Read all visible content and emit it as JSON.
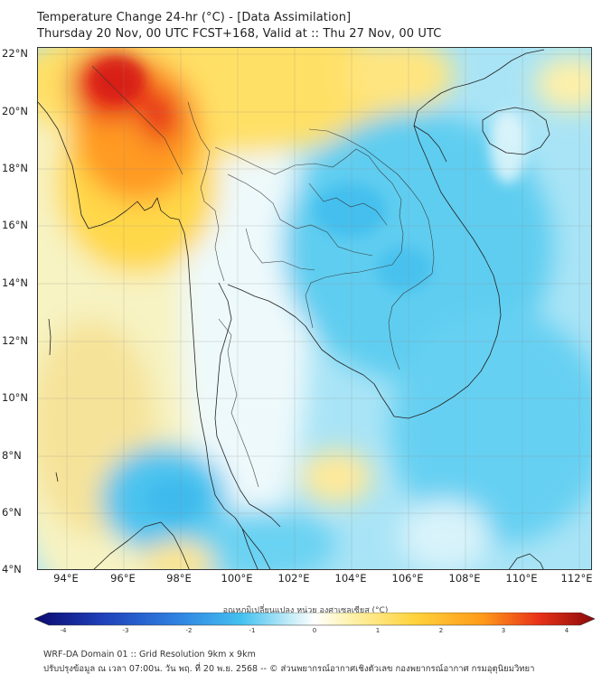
{
  "header": {
    "title_line1": "Temperature Change 24-hr (°C) - [Data Assimilation]",
    "title_line2": "Thursday 20 Nov, 00 UTC FCST+168, Valid at :: Thu 27 Nov, 00 UTC"
  },
  "map": {
    "lat_labels": [
      "22°N",
      "20°N",
      "18°N",
      "16°N",
      "14°N",
      "12°N",
      "10°N",
      "8°N",
      "6°N",
      "4°N"
    ],
    "lon_labels": [
      "94°E",
      "96°E",
      "98°E",
      "100°E",
      "102°E",
      "104°E",
      "106°E",
      "108°E",
      "110°E",
      "112°E"
    ]
  },
  "colorbar": {
    "title": "อุณหภูมิเปลี่ยนแปลง หน่วย องศาเซลเซียส (°C)",
    "ticks": [
      "-4",
      "-3",
      "-2",
      "-1",
      "0",
      "1",
      "2",
      "3",
      "4"
    ],
    "colors": [
      "#0a0a6e",
      "#1f3fb8",
      "#2f7fe0",
      "#44c1f0",
      "#c8eef8",
      "#ffffff",
      "#fff3b0",
      "#ffd23a",
      "#ff9a1a",
      "#e83218",
      "#8a0a0a"
    ]
  },
  "footer": {
    "line1": "WRF-DA Domain 01 :: Grid Resolution 9km x 9km",
    "line2": "ปรับปรุงข้อมูล ณ เวลา 07:00น. วัน พฤ. ที่ 20 พ.ย. 2568 -- © ส่วนพยากรณ์อากาศเชิงตัวเลข กองพยากรณ์อากาศ กรมอุตุนิยมวิทยา"
  }
}
